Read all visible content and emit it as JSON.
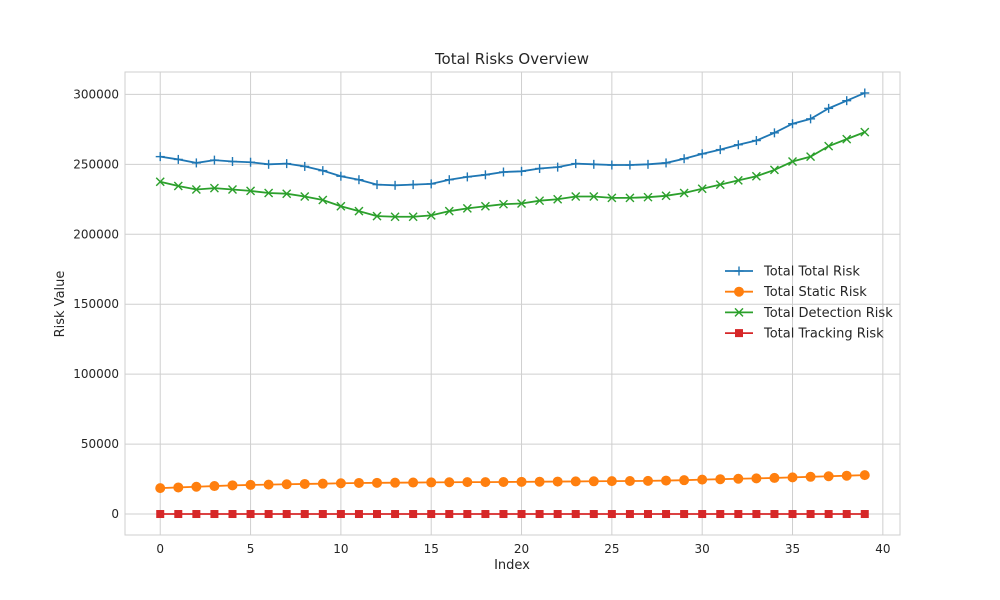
{
  "chart_data": {
    "type": "line",
    "title": "Total Risks Overview",
    "xlabel": "Index",
    "ylabel": "Risk Value",
    "xlim": [
      -1.95,
      40.95
    ],
    "ylim": [
      -15000,
      316000
    ],
    "xticks": [
      0,
      5,
      10,
      15,
      20,
      25,
      30,
      35,
      40
    ],
    "yticks": [
      0,
      50000,
      100000,
      150000,
      200000,
      250000,
      300000
    ],
    "grid": true,
    "legend_position": "center-right",
    "x": [
      0,
      1,
      2,
      3,
      4,
      5,
      6,
      7,
      8,
      9,
      10,
      11,
      12,
      13,
      14,
      15,
      16,
      17,
      18,
      19,
      20,
      21,
      22,
      23,
      24,
      25,
      26,
      27,
      28,
      29,
      30,
      31,
      32,
      33,
      34,
      35,
      36,
      37,
      38,
      39
    ],
    "series": [
      {
        "name": "Total Total Risk",
        "color": "#1f77b4",
        "marker": "plus",
        "values": [
          255500,
          253500,
          251000,
          253000,
          252000,
          251500,
          250000,
          250500,
          248500,
          245500,
          241500,
          239000,
          235500,
          235000,
          235500,
          236000,
          239000,
          241000,
          242500,
          244500,
          245000,
          247000,
          248000,
          250500,
          250000,
          249500,
          249500,
          250000,
          251000,
          254000,
          257500,
          260500,
          264000,
          267000,
          272500,
          279000,
          282500,
          290000,
          295500,
          301000
        ]
      },
      {
        "name": "Total Static Risk",
        "color": "#ff7f0e",
        "marker": "circle",
        "values": [
          18500,
          19000,
          19500,
          20000,
          20500,
          20800,
          21000,
          21300,
          21500,
          21700,
          22000,
          22200,
          22300,
          22400,
          22500,
          22600,
          22700,
          22800,
          22800,
          22900,
          23000,
          23100,
          23200,
          23300,
          23400,
          23500,
          23600,
          23700,
          23900,
          24200,
          24600,
          24900,
          25200,
          25500,
          25800,
          26200,
          26600,
          27000,
          27400,
          27800
        ]
      },
      {
        "name": "Total Detection Risk",
        "color": "#2ca02c",
        "marker": "x",
        "values": [
          237500,
          234500,
          232000,
          233000,
          232000,
          231000,
          229500,
          229000,
          227000,
          224500,
          220000,
          216500,
          213000,
          212500,
          212500,
          213500,
          216500,
          218500,
          220000,
          221500,
          222000,
          224000,
          225000,
          227000,
          227000,
          226000,
          226000,
          226500,
          227500,
          229500,
          232500,
          235500,
          238500,
          241500,
          246000,
          252000,
          255500,
          263000,
          268000,
          273000
        ]
      },
      {
        "name": "Total Tracking Risk",
        "color": "#d62728",
        "marker": "square",
        "values": [
          0,
          0,
          0,
          0,
          0,
          0,
          0,
          0,
          0,
          0,
          0,
          0,
          0,
          0,
          0,
          0,
          0,
          0,
          0,
          0,
          0,
          0,
          0,
          0,
          0,
          0,
          0,
          0,
          0,
          0,
          0,
          0,
          0,
          0,
          0,
          0,
          0,
          0,
          0,
          0
        ]
      }
    ]
  }
}
